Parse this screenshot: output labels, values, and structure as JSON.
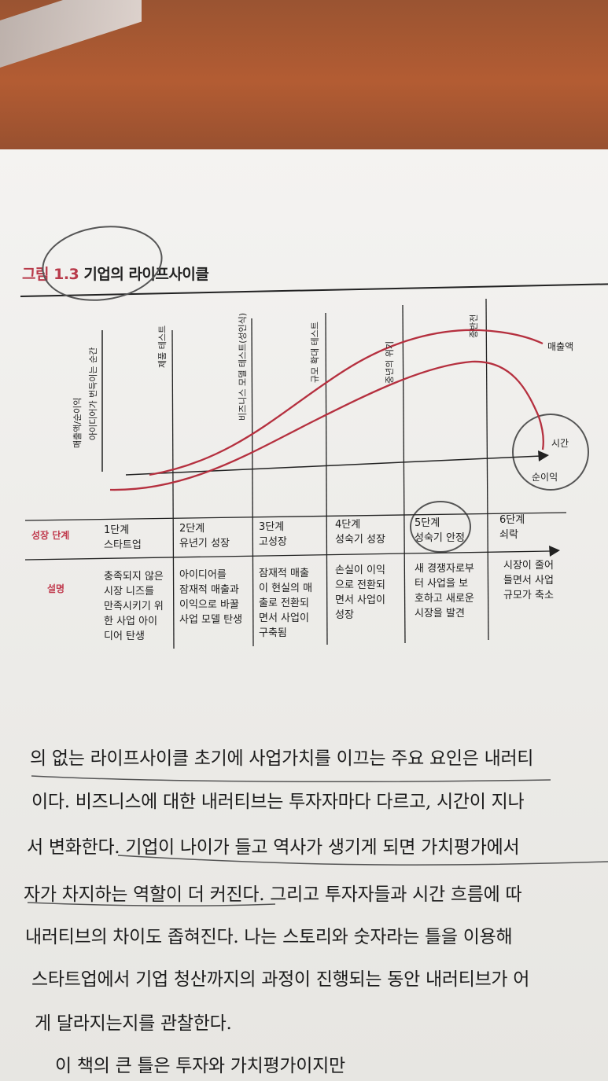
{
  "figure": {
    "label_prefix": "그림",
    "label_number": "1.3",
    "title": "기업의 라이프사이클"
  },
  "chart": {
    "y_axis_label": "매출액/순이익",
    "milestones": [
      "아이디어가 번득이는 순간",
      "제품 테스트",
      "비즈니스 모델 테스트(성인식)",
      "규모 확대 테스트",
      "중년의 위기",
      "종반전"
    ],
    "curve_labels": {
      "revenue": "매출액",
      "time": "시간",
      "net_income": "순이익"
    },
    "colors": {
      "curve": "#b5303f",
      "accent": "#b83a4a"
    }
  },
  "table": {
    "row_labels": [
      "성장 단계",
      "설명"
    ],
    "stages": [
      {
        "name": "1단계\n스타트업",
        "desc": "충족되지 않은\n시장 니즈를\n만족시키기 위\n한 사업 아이\n디어 탄생"
      },
      {
        "name": "2단계\n유년기 성장",
        "desc": "아이디어를\n잠재적 매출과\n이익으로 바꿀\n사업 모델 탄생"
      },
      {
        "name": "3단계\n고성장",
        "desc": "잠재적 매출\n이 현실의 매\n출로 전환되\n면서 사업이\n구축됨"
      },
      {
        "name": "4단계\n성숙기 성장",
        "desc": "손실이 이익\n으로 전환되\n면서 사업이\n성장"
      },
      {
        "name": "5단계\n성숙기 안정",
        "desc": "새 경쟁자로부\n터 사업을 보\n호하고 새로운\n시장을 발견"
      },
      {
        "name": "6단계\n쇠락",
        "desc": "시장이 줄어\n들면서 사업\n규모가 축소"
      }
    ]
  },
  "body_text": [
    "의 없는 라이프사이클 초기에 사업가치를 이끄는 주요 요인은 내러티",
    "이다. 비즈니스에 대한 내러티브는 투자자마다 다르고, 시간이 지나",
    "서 변화한다. 기업이 나이가 들고 역사가 생기게 되면 가치평가에서",
    "자가 차지하는 역할이 더 커진다. 그리고 투자자들과 시간 흐름에 따",
    "내러티브의 차이도 좁혀진다. 나는 스토리와 숫자라는 틀을 이용해",
    "스타트업에서 기업 청산까지의 과정이 진행되는 동안 내러티브가 어",
    "게 달라지는지를 관찰한다.",
    "이 책의 큰 틀은 투자와 가치평가이지만"
  ]
}
